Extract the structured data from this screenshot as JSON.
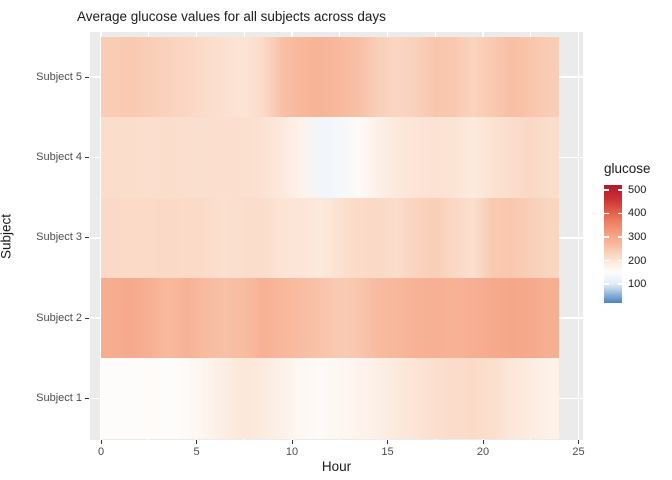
{
  "title": "Average glucose values for all subjects across days",
  "chart_data": {
    "type": "heatmap",
    "title": "Average glucose values for all subjects across days",
    "xlabel": "Hour",
    "ylabel": "Subject",
    "x_ticks": [
      0,
      5,
      10,
      15,
      20,
      25
    ],
    "x_minor_ticks": [
      2.5,
      7.5,
      12.5,
      17.5,
      22.5
    ],
    "x_range": [
      0,
      25
    ],
    "tile_hour_range": [
      0,
      24
    ],
    "hours": [
      0,
      1,
      2,
      3,
      4,
      5,
      6,
      7,
      8,
      9,
      10,
      11,
      12,
      13,
      14,
      15,
      16,
      17,
      18,
      19,
      20,
      21,
      22,
      23
    ],
    "categories_top_to_bottom": [
      "Subject 5",
      "Subject 4",
      "Subject 3",
      "Subject 2",
      "Subject 1"
    ],
    "series": [
      {
        "name": "Subject 5",
        "values": [
          240,
          246,
          238,
          231,
          222,
          214,
          205,
          201,
          216,
          258,
          272,
          280,
          268,
          258,
          237,
          224,
          233,
          250,
          247,
          228,
          246,
          260,
          252,
          240
        ]
      },
      {
        "name": "Subject 4",
        "values": [
          212,
          211,
          210,
          211,
          210,
          209,
          210,
          208,
          203,
          193,
          175,
          128,
          132,
          158,
          180,
          193,
          200,
          203,
          201,
          192,
          204,
          211,
          221,
          212
        ]
      },
      {
        "name": "Subject 3",
        "values": [
          218,
          217,
          216,
          219,
          217,
          215,
          207,
          212,
          211,
          201,
          199,
          192,
          206,
          217,
          219,
          211,
          229,
          236,
          221,
          208,
          245,
          249,
          236,
          226
        ]
      },
      {
        "name": "Subject 2",
        "values": [
          291,
          298,
          286,
          269,
          281,
          266,
          258,
          265,
          283,
          272,
          263,
          255,
          243,
          250,
          266,
          271,
          281,
          287,
          280,
          288,
          296,
          302,
          299,
          287
        ]
      },
      {
        "name": "Subject 1",
        "values": [
          154,
          155,
          156,
          155,
          158,
          172,
          186,
          196,
          190,
          179,
          162,
          158,
          166,
          172,
          182,
          192,
          201,
          208,
          214,
          216,
          210,
          196,
          188,
          179
        ]
      }
    ],
    "legend": {
      "title": "glucose",
      "tick_values": [
        500,
        400,
        300,
        200,
        100
      ],
      "domain": [
        20,
        520
      ]
    },
    "color_scale": [
      {
        "value": 20,
        "color": "#4A84BD"
      },
      {
        "value": 40,
        "color": "#6E9ECC"
      },
      {
        "value": 70,
        "color": "#A8C8E2"
      },
      {
        "value": 100,
        "color": "#E0EBF5"
      },
      {
        "value": 120,
        "color": "#EDF3F9"
      },
      {
        "value": 140,
        "color": "#F8FAFC"
      },
      {
        "value": 152,
        "color": "#FEFDFC"
      },
      {
        "value": 165,
        "color": "#FEF7F2"
      },
      {
        "value": 185,
        "color": "#FDEEE3"
      },
      {
        "value": 210,
        "color": "#FBDECD"
      },
      {
        "value": 240,
        "color": "#F9CDB5"
      },
      {
        "value": 270,
        "color": "#F8B89C"
      },
      {
        "value": 300,
        "color": "#F6A88B"
      },
      {
        "value": 330,
        "color": "#F39478"
      },
      {
        "value": 370,
        "color": "#ED7B61"
      },
      {
        "value": 410,
        "color": "#E05A48"
      },
      {
        "value": 460,
        "color": "#CB3236"
      },
      {
        "value": 520,
        "color": "#B2182B"
      }
    ],
    "style": {
      "panel_bg": "#EBEBEB",
      "grid_color": "#FFFFFF",
      "tick_color": "#333333",
      "axis_text_color": "#4D4D4D",
      "text_color": "#1A1A1A"
    }
  }
}
